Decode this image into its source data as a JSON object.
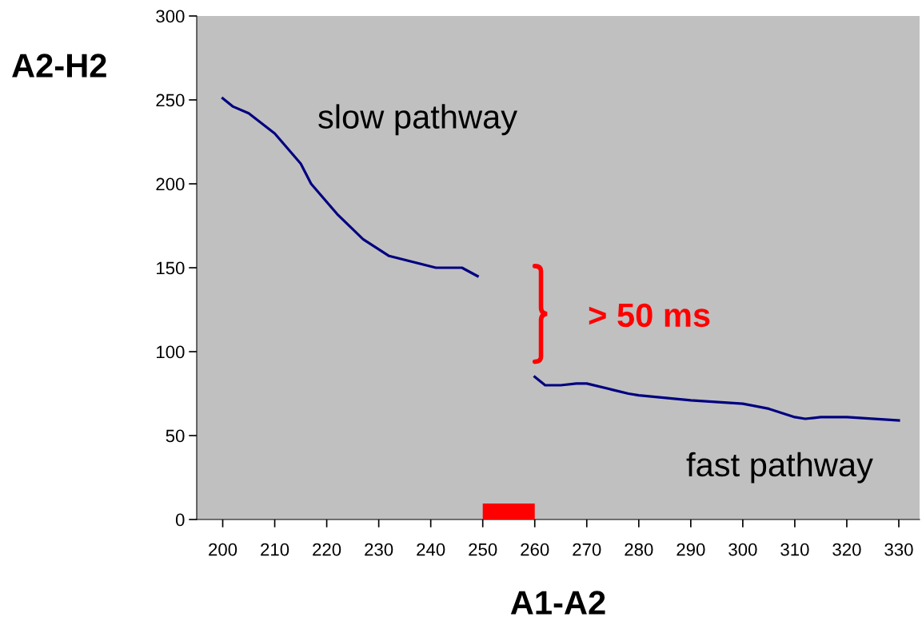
{
  "chart_data": {
    "type": "line",
    "xlabel": "A1-A2",
    "ylabel": "A2-H2",
    "series": [
      {
        "color": "#000080",
        "x": [
          200,
          202,
          205,
          210,
          215,
          217,
          222,
          227,
          232,
          241,
          246,
          249,
          255,
          260,
          262,
          265,
          268,
          270,
          278,
          280,
          290,
          300,
          305,
          310,
          312,
          315,
          320,
          330
        ],
        "values": [
          251,
          246,
          242,
          230,
          212,
          200,
          182,
          167,
          157,
          150,
          150,
          145,
          null,
          85,
          80,
          80,
          81,
          81,
          75,
          74,
          71,
          69,
          66,
          61,
          60,
          61,
          61,
          59
        ]
      },
      {
        "type": "bar",
        "color": "#ff0000",
        "x": [
          255
        ],
        "values": [
          9.5
        ]
      }
    ],
    "xlim": [
      195,
      334
    ],
    "xticks": [
      200,
      210,
      220,
      230,
      240,
      250,
      260,
      270,
      280,
      290,
      300,
      310,
      320,
      330
    ],
    "ylim": [
      0,
      300
    ],
    "yticks": [
      0,
      50,
      100,
      150,
      200,
      250,
      300
    ],
    "annotations": [
      "slow pathway",
      "> 50 ms",
      "fast pathway"
    ],
    "grid": false,
    "legend": false,
    "marker": "none",
    "line_style": "solid"
  }
}
